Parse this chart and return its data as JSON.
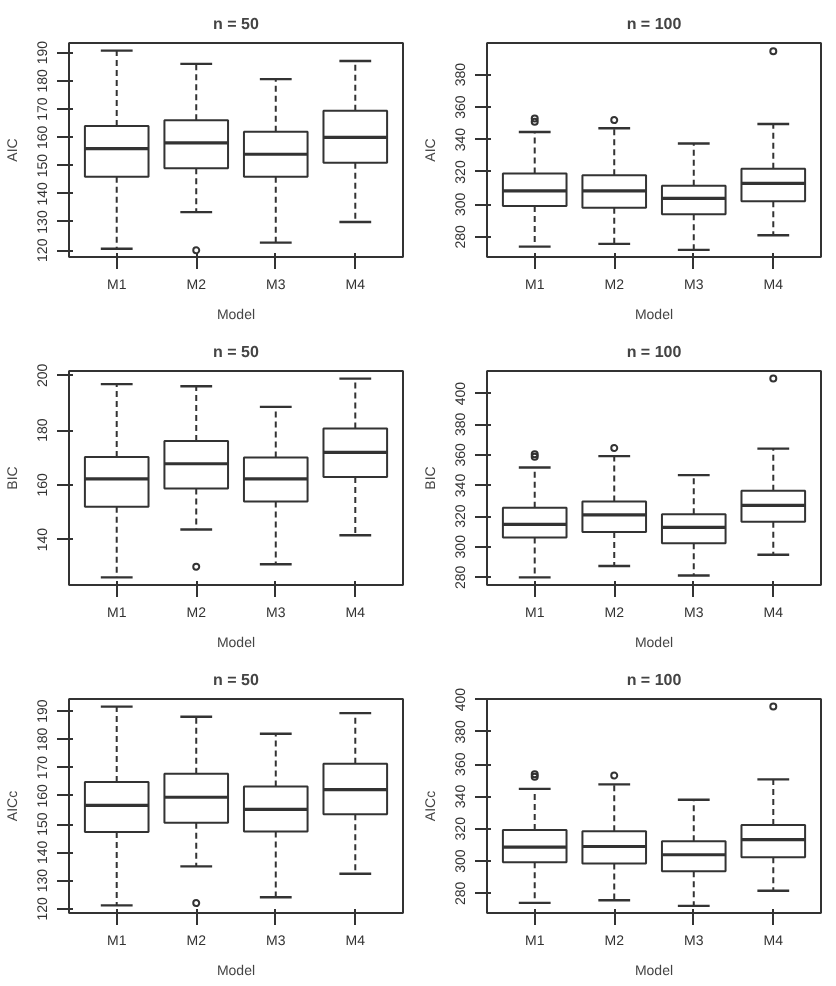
{
  "chart_data": [
    {
      "type": "box",
      "title": "n = 50",
      "xlabel": "Model",
      "ylabel": "AIC",
      "categories": [
        "M1",
        "M2",
        "M3",
        "M4"
      ],
      "ylim": [
        117.6,
        193.4
      ],
      "yticks": [
        120,
        130,
        140,
        150,
        160,
        170,
        180,
        190
      ],
      "boxes": [
        {
          "low": 120.5,
          "q1": 146,
          "median": 156,
          "q3": 164,
          "high": 190.7
        },
        {
          "low": 133.5,
          "q1": 149,
          "median": 158,
          "q3": 166,
          "high": 186,
          "outliers": [
            120
          ]
        },
        {
          "low": 122.7,
          "q1": 146,
          "median": 154,
          "q3": 162,
          "high": 180.6
        },
        {
          "low": 130,
          "q1": 151,
          "median": 160,
          "q3": 169.4,
          "high": 187
        }
      ]
    },
    {
      "type": "box",
      "title": "n = 100",
      "xlabel": "Model",
      "ylabel": "AIC",
      "categories": [
        "M1",
        "M2",
        "M3",
        "M4"
      ],
      "ylim": [
        267.6,
        399.5
      ],
      "yticks": [
        280,
        300,
        320,
        340,
        360,
        380
      ],
      "boxes": [
        {
          "low": 274,
          "q1": 299,
          "median": 308.4,
          "q3": 319,
          "high": 344.6,
          "outliers": [
            351,
            353
          ]
        },
        {
          "low": 275.7,
          "q1": 298,
          "median": 308.4,
          "q3": 318,
          "high": 347,
          "outliers": [
            352
          ]
        },
        {
          "low": 272,
          "q1": 294,
          "median": 303.7,
          "q3": 311.5,
          "high": 337.6
        },
        {
          "low": 281,
          "q1": 302,
          "median": 313,
          "q3": 322,
          "high": 349.6,
          "outliers": [
            394.4
          ]
        }
      ]
    },
    {
      "type": "box",
      "title": "n = 50",
      "xlabel": "Model",
      "ylabel": "BIC",
      "categories": [
        "M1",
        "M2",
        "M3",
        "M4"
      ],
      "ylim": [
        123.4,
        201.6
      ],
      "yticks": [
        140,
        160,
        180,
        200
      ],
      "boxes": [
        {
          "low": 126.2,
          "q1": 152,
          "median": 162.2,
          "q3": 170.2,
          "high": 196.8
        },
        {
          "low": 143.7,
          "q1": 158.7,
          "median": 167.7,
          "q3": 176,
          "high": 196,
          "outliers": [
            130.1
          ]
        },
        {
          "low": 131,
          "q1": 153.9,
          "median": 162.2,
          "q3": 170,
          "high": 188.5
        },
        {
          "low": 141.6,
          "q1": 162.9,
          "median": 171.9,
          "q3": 180.6,
          "high": 198.8
        }
      ]
    },
    {
      "type": "box",
      "title": "n = 100",
      "xlabel": "Model",
      "ylabel": "BIC",
      "categories": [
        "M1",
        "M2",
        "M3",
        "M4"
      ],
      "ylim": [
        275,
        414.8
      ],
      "yticks": [
        280,
        300,
        320,
        340,
        360,
        380,
        400
      ],
      "boxes": [
        {
          "low": 280,
          "q1": 306,
          "median": 314.6,
          "q3": 325.4,
          "high": 351.8,
          "outliers": [
            358.8,
            360.4
          ]
        },
        {
          "low": 287.4,
          "q1": 309.7,
          "median": 320.8,
          "q3": 329.5,
          "high": 359.2,
          "outliers": [
            364.5
          ]
        },
        {
          "low": 281.2,
          "q1": 302.3,
          "median": 312.6,
          "q3": 321.2,
          "high": 346.8
        },
        {
          "low": 294.8,
          "q1": 316.3,
          "median": 327,
          "q3": 336.5,
          "high": 364.1,
          "outliers": [
            409.9
          ]
        }
      ]
    },
    {
      "type": "box",
      "title": "n = 50",
      "xlabel": "Model",
      "ylabel": "AICc",
      "categories": [
        "M1",
        "M2",
        "M3",
        "M4"
      ],
      "ylim": [
        118.5,
        194.3
      ],
      "yticks": [
        120,
        130,
        140,
        150,
        160,
        170,
        180,
        190
      ],
      "boxes": [
        {
          "low": 121.2,
          "q1": 147.2,
          "median": 156.6,
          "q3": 164.9,
          "high": 191.6
        },
        {
          "low": 135,
          "q1": 150.5,
          "median": 159.5,
          "q3": 167.8,
          "high": 188,
          "outliers": [
            122
          ]
        },
        {
          "low": 124.1,
          "q1": 147.4,
          "median": 155.2,
          "q3": 163.3,
          "high": 182
        },
        {
          "low": 132.4,
          "q1": 153.5,
          "median": 162.2,
          "q3": 171.4,
          "high": 189.3
        }
      ]
    },
    {
      "type": "box",
      "title": "n = 100",
      "xlabel": "Model",
      "ylabel": "AICc",
      "categories": [
        "M1",
        "M2",
        "M3",
        "M4"
      ],
      "ylim": [
        267.8,
        400.4
      ],
      "yticks": [
        280,
        300,
        320,
        340,
        360,
        380,
        400
      ],
      "boxes": [
        {
          "low": 274.1,
          "q1": 299.2,
          "median": 308.6,
          "q3": 319.2,
          "high": 344.7,
          "outliers": [
            352.2,
            353.7
          ]
        },
        {
          "low": 275.7,
          "q1": 298.4,
          "median": 309,
          "q3": 318.4,
          "high": 347.5,
          "outliers": [
            353
          ]
        },
        {
          "low": 272.2,
          "q1": 293.7,
          "median": 303.9,
          "q3": 312.2,
          "high": 338
        },
        {
          "low": 281.6,
          "q1": 302.4,
          "median": 313.3,
          "q3": 322.4,
          "high": 350.6,
          "outliers": [
            395.7
          ]
        }
      ]
    }
  ]
}
